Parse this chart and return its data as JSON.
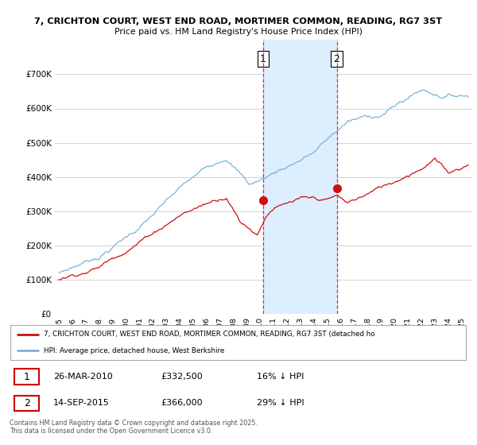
{
  "title_line1": "7, CRICHTON COURT, WEST END ROAD, MORTIMER COMMON, READING, RG7 3ST",
  "title_line2": "Price paid vs. HM Land Registry's House Price Index (HPI)",
  "ylim": [
    0,
    800000
  ],
  "yticks": [
    0,
    100000,
    200000,
    300000,
    400000,
    500000,
    600000,
    700000
  ],
  "ytick_labels": [
    "£0",
    "£100K",
    "£200K",
    "£300K",
    "£400K",
    "£500K",
    "£600K",
    "£700K"
  ],
  "hpi_color": "#7ab4d8",
  "price_color": "#cc1111",
  "vline1_x": 2010.22,
  "vline2_x": 2015.7,
  "sale1_y": 332500,
  "sale2_y": 366000,
  "sale1_date": "26-MAR-2010",
  "sale1_price": "£332,500",
  "sale1_note": "16% ↓ HPI",
  "sale2_date": "14-SEP-2015",
  "sale2_price": "£366,000",
  "sale2_note": "29% ↓ HPI",
  "legend_label1": "7, CRICHTON COURT, WEST END ROAD, MORTIMER COMMON, READING, RG7 3ST (detached ho",
  "legend_label2": "HPI: Average price, detached house, West Berkshire",
  "footnote": "Contains HM Land Registry data © Crown copyright and database right 2025.\nThis data is licensed under the Open Government Licence v3.0.",
  "shaded_color": "#ddeeff",
  "xlim_left": 1994.7,
  "xlim_right": 2025.8
}
